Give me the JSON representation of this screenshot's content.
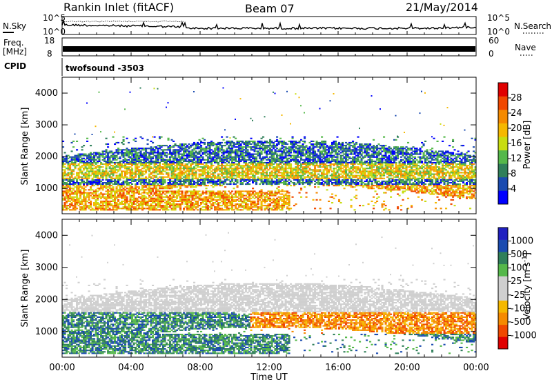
{
  "header": {
    "station": "Rankin Inlet (fitACF)",
    "beam": "Beam 07",
    "date": "21/May/2014"
  },
  "top_panels": {
    "nsky_label": "N.Sky",
    "nsky_ticks": [
      "10^5",
      "10^0"
    ],
    "nsearch_label": "N.Search",
    "nsearch_ticks": [
      "10^5",
      "10^0"
    ],
    "freq_label": "Freq.",
    "freq_unit": "[MHz]",
    "freq_ticks": [
      "18",
      "8"
    ],
    "nave_label": "Nave",
    "nave_ticks": [
      "60",
      "0"
    ],
    "cpid_label": "CPID",
    "cpid_value": "twofsound -3503"
  },
  "colors": {
    "power_scale": [
      "#0000ff",
      "#1a4bb0",
      "#2f7f5a",
      "#55b84a",
      "#c8dd10",
      "#f5b800",
      "#f58a00",
      "#f04800",
      "#e00000"
    ],
    "velocity_scale": [
      "#e00000",
      "#f04800",
      "#f58a00",
      "#f5b800",
      "#cfcfcf",
      "#cfcfcf",
      "#55b84a",
      "#2f7f5a",
      "#1a4bb0",
      "#2020c0"
    ]
  },
  "chart_data": [
    {
      "type": "heatmap",
      "name": "power",
      "title": "",
      "ylabel": "Slant Range [km]",
      "xlabel": "",
      "x_ticks": [
        "00:00",
        "04:00",
        "08:00",
        "12:00",
        "16:00",
        "20:00",
        "00:00"
      ],
      "x_range_hours": [
        0,
        24
      ],
      "y_ticks": [
        1000,
        2000,
        3000,
        4000
      ],
      "ylim": [
        200,
        4500
      ],
      "colorbar": {
        "label": "Power [dB]",
        "ticks": [
          4,
          8,
          12,
          16,
          20,
          24,
          28
        ],
        "range": [
          0,
          32
        ]
      }
    },
    {
      "type": "heatmap",
      "name": "velocity",
      "title": "",
      "ylabel": "Slant Range [km]",
      "xlabel": "Time UT",
      "x_ticks": [
        "00:00",
        "04:00",
        "08:00",
        "12:00",
        "16:00",
        "20:00",
        "00:00"
      ],
      "x_range_hours": [
        0,
        24
      ],
      "y_ticks": [
        1000,
        2000,
        3000,
        4000
      ],
      "ylim": [
        200,
        4500
      ],
      "colorbar": {
        "label": "Velocity [m s",
        "label_exponent": "-1",
        "label_close": "]",
        "ticks": [
          "1000",
          "500",
          "100",
          "25",
          "-25",
          "-100",
          "-500",
          "-1000"
        ]
      }
    }
  ]
}
